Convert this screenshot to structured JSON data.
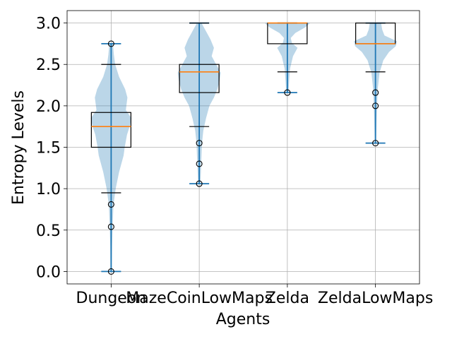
{
  "chart_data": {
    "type": "violin+box",
    "xlabel": "Agents",
    "ylabel": "Entropy Levels",
    "ylim": [
      -0.15,
      3.15
    ],
    "yticks": [
      0.0,
      0.5,
      1.0,
      1.5,
      2.0,
      2.5,
      3.0
    ],
    "ytick_labels": [
      "0.0",
      "0.5",
      "1.0",
      "1.5",
      "2.0",
      "2.5",
      "3.0"
    ],
    "grid": true,
    "categories": [
      "Dungeon",
      "MazeCoinLowMaps",
      "Zelda",
      "ZeldaLowMaps"
    ],
    "series": [
      {
        "category": "Dungeon",
        "violin_min": 0.0,
        "violin_max": 2.75,
        "density": [
          [
            0.0,
            0.03
          ],
          [
            0.3,
            0.04
          ],
          [
            0.5,
            0.06
          ],
          [
            0.8,
            0.1
          ],
          [
            1.0,
            0.2
          ],
          [
            1.2,
            0.35
          ],
          [
            1.4,
            0.55
          ],
          [
            1.5,
            0.6
          ],
          [
            1.65,
            0.7
          ],
          [
            1.75,
            0.82
          ],
          [
            1.85,
            0.9
          ],
          [
            1.95,
            0.65
          ],
          [
            2.1,
            0.72
          ],
          [
            2.2,
            0.62
          ],
          [
            2.35,
            0.35
          ],
          [
            2.5,
            0.18
          ],
          [
            2.62,
            0.12
          ],
          [
            2.75,
            0.08
          ]
        ],
        "q1": 1.5,
        "median": 1.75,
        "q3": 1.92,
        "whisker_low": 0.95,
        "whisker_high": 2.5,
        "fliers": [
          0.0,
          0.54,
          0.81,
          2.75
        ]
      },
      {
        "category": "MazeCoinLowMaps",
        "violin_min": 1.06,
        "violin_max": 3.0,
        "density": [
          [
            1.06,
            0.05
          ],
          [
            1.2,
            0.07
          ],
          [
            1.4,
            0.1
          ],
          [
            1.55,
            0.12
          ],
          [
            1.7,
            0.18
          ],
          [
            1.85,
            0.3
          ],
          [
            2.0,
            0.45
          ],
          [
            2.1,
            0.65
          ],
          [
            2.2,
            0.8
          ],
          [
            2.3,
            0.9
          ],
          [
            2.4,
            0.95
          ],
          [
            2.5,
            0.75
          ],
          [
            2.6,
            0.55
          ],
          [
            2.7,
            0.65
          ],
          [
            2.8,
            0.5
          ],
          [
            2.9,
            0.3
          ],
          [
            3.0,
            0.1
          ]
        ],
        "q1": 2.16,
        "median": 2.41,
        "q3": 2.5,
        "whisker_low": 1.75,
        "whisker_high": 3.0,
        "fliers": [
          1.06,
          1.3,
          1.55
        ]
      },
      {
        "category": "Zelda",
        "violin_min": 2.16,
        "violin_max": 3.0,
        "density": [
          [
            2.16,
            0.05
          ],
          [
            2.3,
            0.08
          ],
          [
            2.45,
            0.12
          ],
          [
            2.6,
            0.25
          ],
          [
            2.7,
            0.45
          ],
          [
            2.76,
            0.2
          ],
          [
            2.82,
            0.15
          ],
          [
            2.88,
            0.35
          ],
          [
            2.95,
            0.8
          ],
          [
            3.0,
            1.0
          ]
        ],
        "q1": 2.75,
        "median": 3.0,
        "q3": 3.0,
        "whisker_low": 2.41,
        "whisker_high": 3.0,
        "fliers": [
          2.16
        ]
      },
      {
        "category": "ZeldaLowMaps",
        "violin_min": 1.55,
        "violin_max": 3.0,
        "density": [
          [
            1.55,
            0.03
          ],
          [
            1.8,
            0.05
          ],
          [
            2.0,
            0.07
          ],
          [
            2.2,
            0.1
          ],
          [
            2.4,
            0.18
          ],
          [
            2.55,
            0.35
          ],
          [
            2.65,
            0.6
          ],
          [
            2.72,
            0.9
          ],
          [
            2.78,
            0.95
          ],
          [
            2.85,
            0.4
          ],
          [
            2.92,
            0.3
          ],
          [
            3.0,
            0.25
          ]
        ],
        "q1": 2.75,
        "median": 2.75,
        "q3": 3.0,
        "whisker_low": 2.41,
        "whisker_high": 3.0,
        "fliers": [
          1.55,
          2.0,
          2.16
        ]
      }
    ]
  }
}
